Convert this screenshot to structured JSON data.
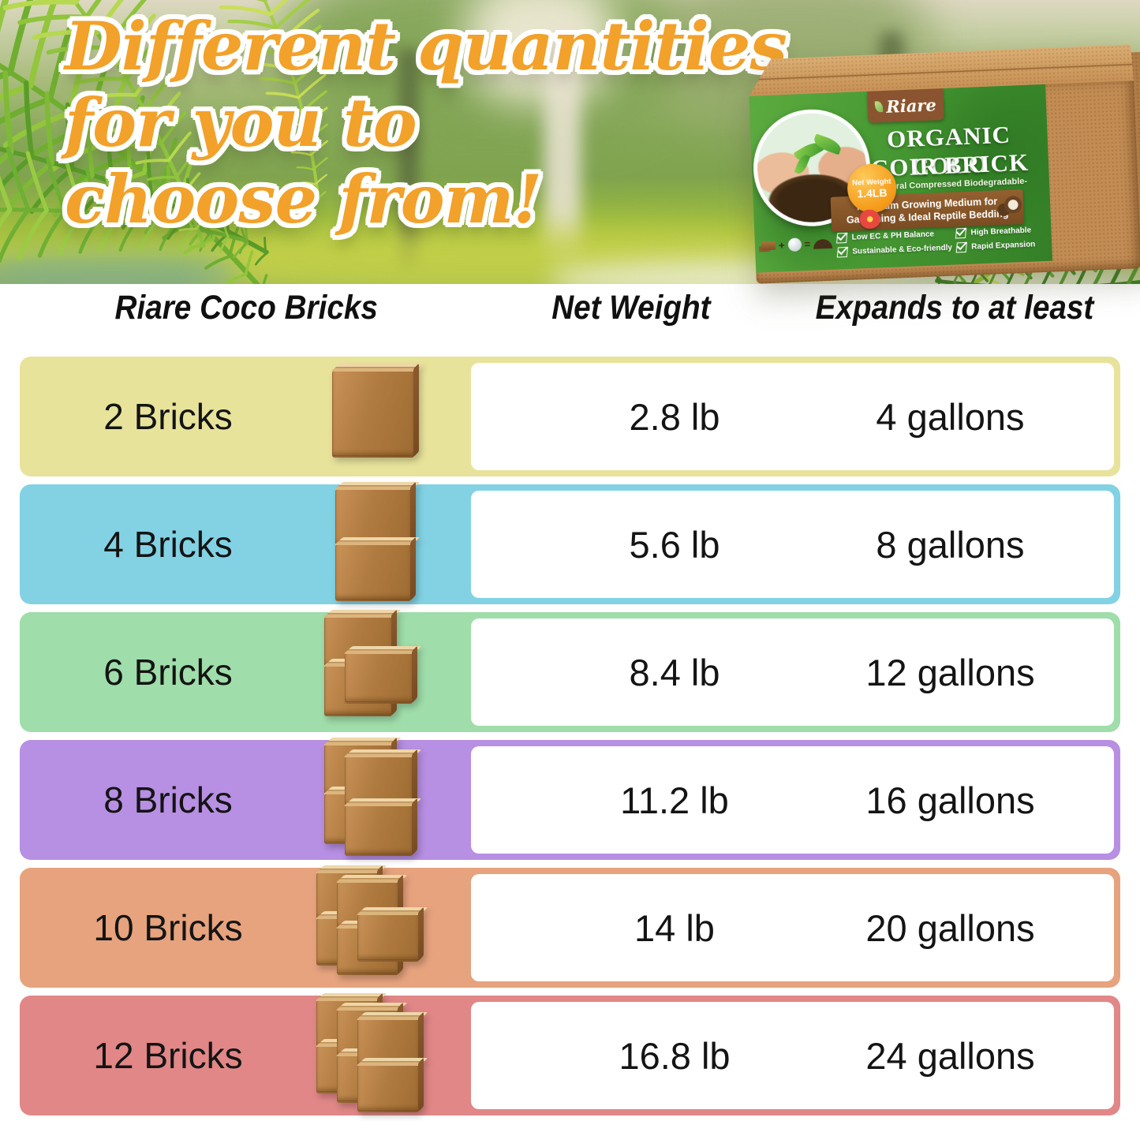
{
  "title": {
    "lines": [
      "Different quantities",
      "for you to",
      "choose from!"
    ],
    "color": "#F2A12A"
  },
  "product_box": {
    "brand": "Riare",
    "name_line1": "ORGANIC COCO",
    "name_line2": "COIR BRICK",
    "subtitle": "-Natural Compressed Biodegradable-",
    "ribbon": "Premium Growing Medium for Gardening & Ideal Reptile Bedding",
    "features": [
      {
        "label": "Low EC & PH Balance"
      },
      {
        "label": "High Breathable"
      },
      {
        "label": "Sustainable & Eco-friendly"
      },
      {
        "label": "Rapid Expansion"
      }
    ],
    "badge": {
      "line1": "Net Weight",
      "line2": "1.4LB"
    },
    "equation": {
      "plus": "+",
      "equals": "="
    }
  },
  "table": {
    "headers": [
      "Riare Coco Bricks",
      "Net Weight",
      "Expands to at least"
    ],
    "rows": [
      {
        "label": "2 Bricks",
        "weight": "2.8 lb",
        "expands": "4 gallons",
        "color": "#E8E39B",
        "bricks": 2
      },
      {
        "label": "4 Bricks",
        "weight": "5.6 lb",
        "expands": "8 gallons",
        "color": "#82D2E4",
        "bricks": 4
      },
      {
        "label": "6 Bricks",
        "weight": "8.4 lb",
        "expands": "12 gallons",
        "color": "#9FDDAA",
        "bricks": 6
      },
      {
        "label": "8 Bricks",
        "weight": "11.2 lb",
        "expands": "16 gallons",
        "color": "#B78FE3",
        "bricks": 8
      },
      {
        "label": "10 Bricks",
        "weight": "14 lb",
        "expands": "20 gallons",
        "color": "#E6A37E",
        "bricks": 10
      },
      {
        "label": "12 Bricks",
        "weight": "16.8 lb",
        "expands": "24 gallons",
        "color": "#E18787",
        "bricks": 12
      }
    ]
  },
  "chart_data": {
    "type": "table",
    "columns": [
      "Riare Coco Bricks",
      "Net Weight",
      "Expands to at least"
    ],
    "rows": [
      [
        "2 Bricks",
        "2.8 lb",
        "4 gallons"
      ],
      [
        "4 Bricks",
        "5.6 lb",
        "8 gallons"
      ],
      [
        "6 Bricks",
        "8.4 lb",
        "12 gallons"
      ],
      [
        "8 Bricks",
        "11.2 lb",
        "16 gallons"
      ],
      [
        "10 Bricks",
        "14 lb",
        "20 gallons"
      ],
      [
        "12 Bricks",
        "16.8 lb",
        "24 gallons"
      ]
    ]
  }
}
